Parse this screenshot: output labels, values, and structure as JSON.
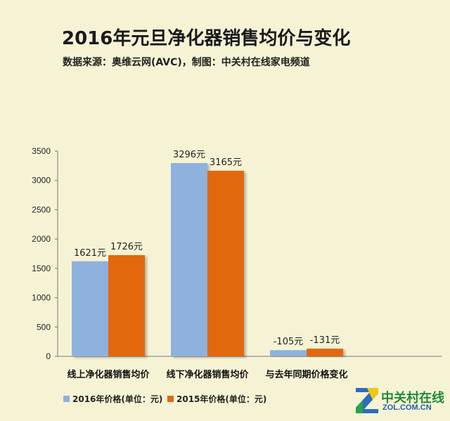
{
  "header": {
    "title": "2016年元旦净化器销售均价与变化",
    "subtitle": "数据来源：奥维云网(AVC)，制图：中关村在线家电频道"
  },
  "chart_data": {
    "type": "bar",
    "categories": [
      "线上净化器销售均价",
      "线下净化器销售均价",
      "与去年同期价格变化"
    ],
    "series": [
      {
        "name": "2016年价格(单位：元)",
        "values": [
          1621,
          3296,
          -105
        ],
        "labels": [
          "1621元",
          "3296元",
          "-105元"
        ],
        "color": "#8fb1dd"
      },
      {
        "name": "2015年价格(单位：元)",
        "values": [
          1726,
          3165,
          -131
        ],
        "labels": [
          "1726元",
          "3165元",
          "-131元"
        ],
        "color": "#e2680c"
      }
    ],
    "yticks": [
      "0",
      "500",
      "1000",
      "1500",
      "2000",
      "2500",
      "3000",
      "3500"
    ],
    "ylim": [
      0,
      3500
    ],
    "legend_position": "bottom-left",
    "grid": false
  },
  "logo": {
    "main": "中关村在线",
    "sub": "ZOL.COM.CN"
  }
}
